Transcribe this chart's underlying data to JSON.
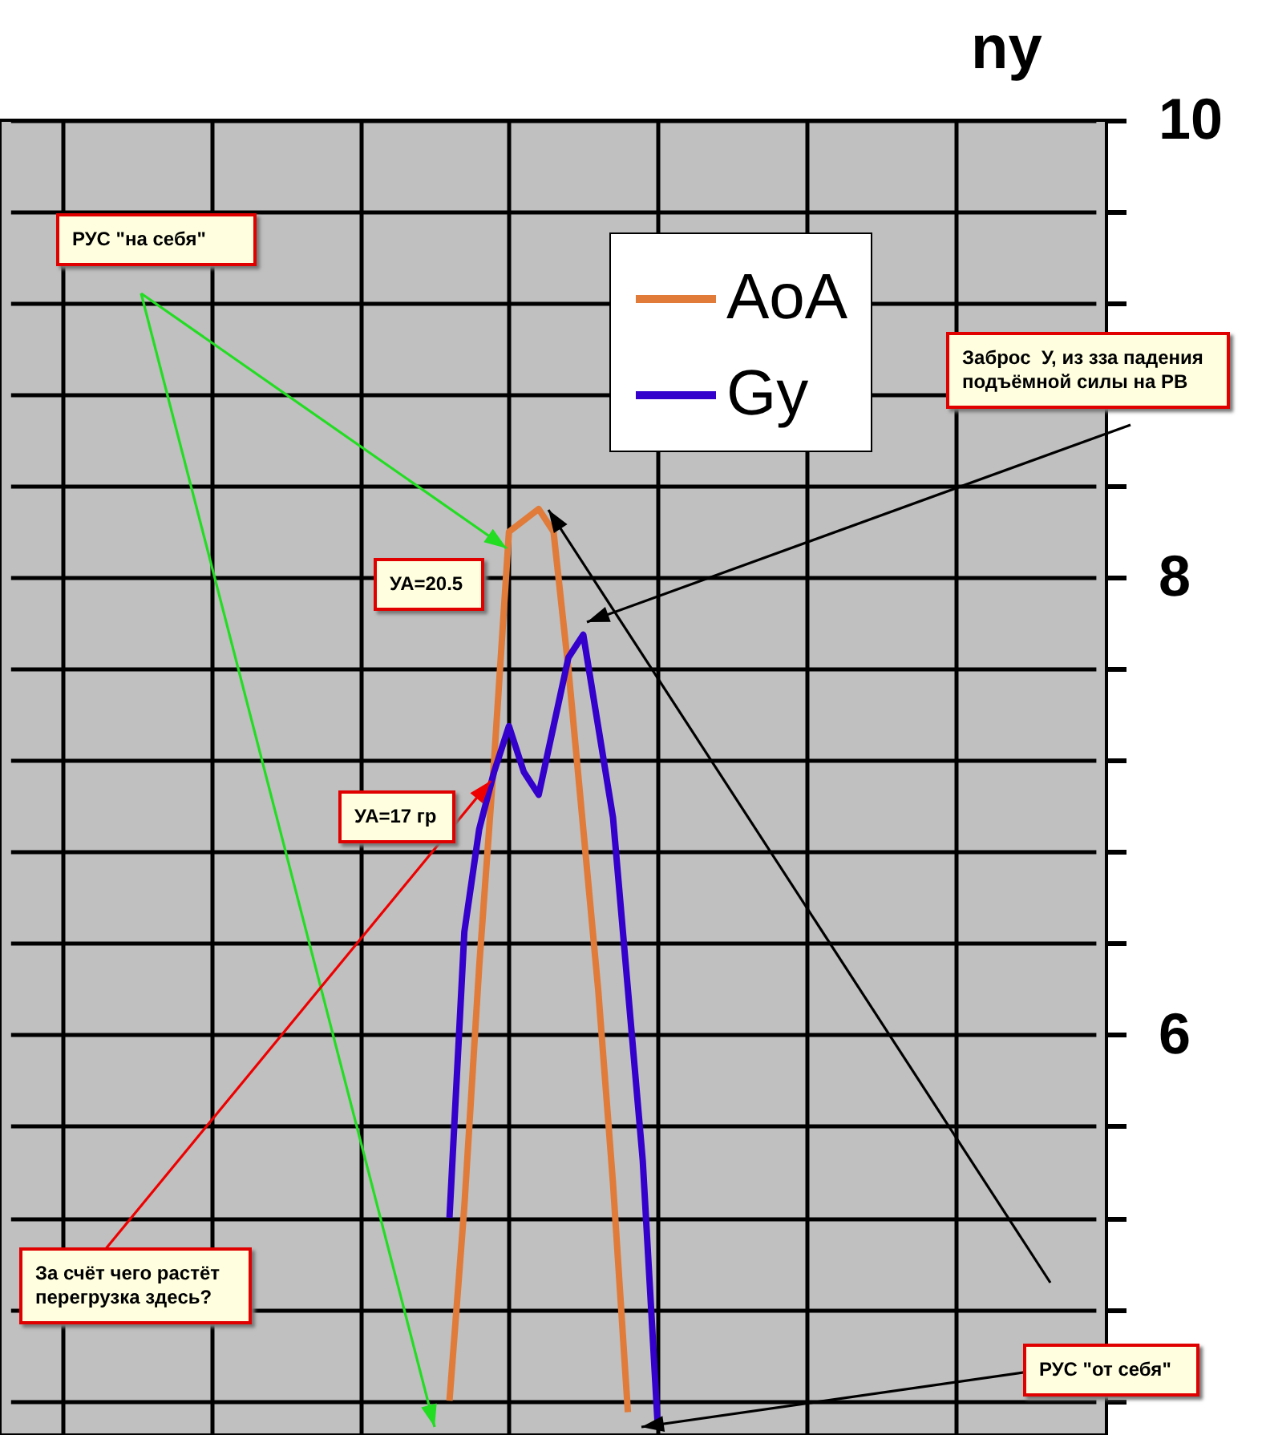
{
  "chart_data": {
    "type": "line",
    "ylabel": "ny",
    "categories": [
      null,
      null,
      null,
      null,
      null,
      null,
      null,
      null,
      null,
      null,
      null,
      null,
      null,
      null,
      null,
      null,
      null,
      null,
      null,
      null,
      null,
      null,
      null,
      null,
      null,
      null,
      null,
      null,
      null,
      null,
      null,
      null,
      null,
      null,
      null,
      null,
      null,
      null,
      null,
      null,
      null,
      null,
      null,
      null,
      null,
      null,
      null,
      null,
      null,
      null,
      null,
      null,
      null,
      null,
      null,
      null,
      null,
      null,
      null,
      null,
      null,
      null,
      null,
      null,
      null,
      null,
      null,
      null,
      null,
      null,
      null,
      null,
      null
    ],
    "series": [
      {
        "name": "AoA",
        "color": "#e07b39",
        "values": [
          null,
          null,
          null,
          null,
          null,
          null,
          null,
          null,
          null,
          null,
          null,
          null,
          null,
          null,
          null,
          null,
          null,
          null,
          null,
          null,
          null,
          null,
          null,
          null,
          null,
          null,
          null,
          null,
          null,
          4.4,
          5.25,
          6.3,
          7.2,
          8.2,
          8.25,
          8.3,
          8.2,
          7.6,
          6.9,
          6.2,
          5.35,
          4.35,
          null,
          null,
          null,
          null,
          null,
          null,
          null,
          null,
          null,
          null,
          null,
          null,
          null,
          null,
          null,
          null,
          null,
          null,
          null,
          null,
          null,
          null,
          null,
          null,
          null,
          null,
          null,
          null,
          null,
          null,
          null
        ]
      },
      {
        "name": "Gy",
        "color": "#3300cc",
        "values": [
          null,
          null,
          null,
          null,
          null,
          null,
          null,
          null,
          null,
          null,
          null,
          null,
          null,
          null,
          null,
          null,
          null,
          null,
          null,
          null,
          null,
          null,
          null,
          null,
          null,
          null,
          null,
          null,
          null,
          5.2,
          6.45,
          6.9,
          7.15,
          7.35,
          7.15,
          7.05,
          7.35,
          7.65,
          7.75,
          7.35,
          6.95,
          6.2,
          5.45,
          4.3,
          null,
          null,
          null,
          null,
          null,
          null,
          null,
          null,
          null,
          null,
          null,
          null,
          null,
          null,
          null,
          null,
          null,
          null,
          null,
          null,
          null,
          null,
          null,
          null,
          null,
          null,
          null,
          null,
          null
        ]
      }
    ],
    "ylim": [
      4.25,
      10
    ],
    "yticks": [
      {
        "value": 4.4,
        "label": null
      },
      {
        "value": 4.8,
        "label": null
      },
      {
        "value": 5.2,
        "label": null
      },
      {
        "value": 5.6,
        "label": null
      },
      6,
      {
        "value": 6.4,
        "label": null
      },
      {
        "value": 6.8,
        "label": null
      },
      {
        "value": 7.2,
        "label": null
      },
      {
        "value": 7.6,
        "label": null
      },
      8,
      {
        "value": 8.4,
        "label": null
      },
      {
        "value": 8.8,
        "label": null
      },
      {
        "value": 9.2,
        "label": null
      },
      {
        "value": 9.6,
        "label": null
      },
      10
    ],
    "grid": true,
    "tick_labels": "y",
    "legend": "top right",
    "line_style": "solid",
    "annotations": [
      "РУС \"на себя\"",
      "Заброс  У, из зза падения подъёмной силы на РВ",
      "УА=20.5",
      "УА=17 гр",
      "За счёт чего растёт перегрузка здесь?",
      "РУС \"от себя\""
    ]
  }
}
